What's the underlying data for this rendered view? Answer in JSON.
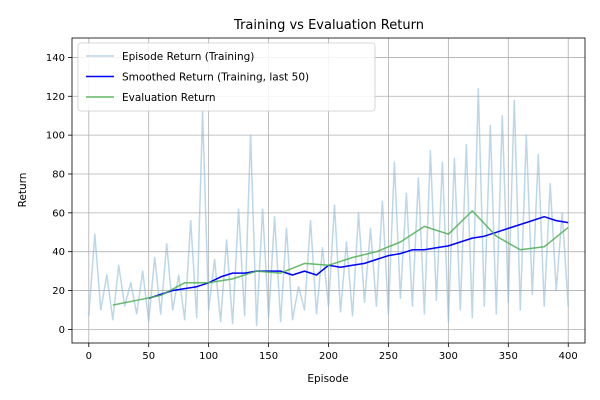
{
  "chart_data": {
    "type": "line",
    "title": "Training vs Evaluation Return",
    "xlabel": "Episode",
    "ylabel": "Return",
    "xlim": [
      -14,
      414
    ],
    "ylim": [
      -7,
      150
    ],
    "grid": true,
    "legend_position": "top-left",
    "x_ticks": [
      0,
      50,
      100,
      150,
      200,
      250,
      300,
      350,
      400
    ],
    "y_ticks": [
      0,
      20,
      40,
      60,
      80,
      100,
      120,
      140
    ],
    "series": [
      {
        "name": "Episode Return (Training)",
        "color": "#8fbcdb",
        "x": [
          0,
          5,
          10,
          15,
          20,
          25,
          30,
          35,
          40,
          45,
          50,
          55,
          60,
          65,
          70,
          75,
          80,
          85,
          90,
          95,
          100,
          105,
          110,
          115,
          120,
          125,
          130,
          135,
          140,
          145,
          150,
          155,
          160,
          165,
          170,
          175,
          180,
          185,
          190,
          195,
          200,
          205,
          210,
          215,
          220,
          225,
          230,
          235,
          240,
          245,
          250,
          255,
          260,
          265,
          270,
          275,
          280,
          285,
          290,
          295,
          300,
          305,
          310,
          315,
          320,
          325,
          330,
          335,
          340,
          345,
          350,
          355,
          360,
          365,
          370,
          375,
          380,
          385,
          390,
          395,
          400
        ],
        "values": [
          7,
          49,
          10,
          28,
          5,
          33,
          12,
          24,
          8,
          30,
          4,
          37,
          8,
          44,
          10,
          28,
          5,
          56,
          6,
          112,
          10,
          36,
          4,
          46,
          3,
          62,
          7,
          100,
          2,
          62,
          6,
          58,
          4,
          52,
          5,
          22,
          10,
          56,
          8,
          42,
          12,
          64,
          9,
          45,
          7,
          60,
          14,
          52,
          12,
          66,
          8,
          86,
          16,
          70,
          12,
          78,
          8,
          92,
          15,
          86,
          4,
          88,
          10,
          95,
          6,
          124,
          12,
          105,
          8,
          110,
          14,
          118,
          10,
          100,
          18,
          90,
          12,
          75,
          20,
          60,
          12
        ]
      },
      {
        "name": "Smoothed Return (Training, last 50)",
        "color": "#0000ff",
        "x": [
          50,
          60,
          70,
          80,
          90,
          100,
          110,
          120,
          130,
          140,
          150,
          160,
          170,
          180,
          190,
          200,
          210,
          220,
          230,
          240,
          250,
          260,
          270,
          280,
          290,
          300,
          310,
          320,
          330,
          340,
          350,
          360,
          370,
          380,
          390,
          400
        ],
        "values": [
          16,
          18,
          20,
          21,
          22,
          24,
          27,
          29,
          29,
          30,
          30,
          30,
          28,
          30,
          28,
          33,
          32,
          33,
          34,
          36,
          38,
          39,
          41,
          41,
          42,
          43,
          45,
          47,
          48,
          50,
          52,
          54,
          56,
          58,
          56,
          55
        ]
      },
      {
        "name": "Evaluation Return",
        "color": "#4caf50",
        "x": [
          20,
          40,
          60,
          80,
          100,
          120,
          140,
          160,
          180,
          200,
          220,
          240,
          260,
          280,
          300,
          320,
          340,
          360,
          380,
          400
        ],
        "values": [
          12.5,
          15,
          17.5,
          24,
          24,
          26,
          30,
          29,
          34,
          33,
          37,
          40,
          45,
          53,
          49,
          61,
          48,
          41,
          42.5,
          52.5
        ]
      }
    ]
  }
}
